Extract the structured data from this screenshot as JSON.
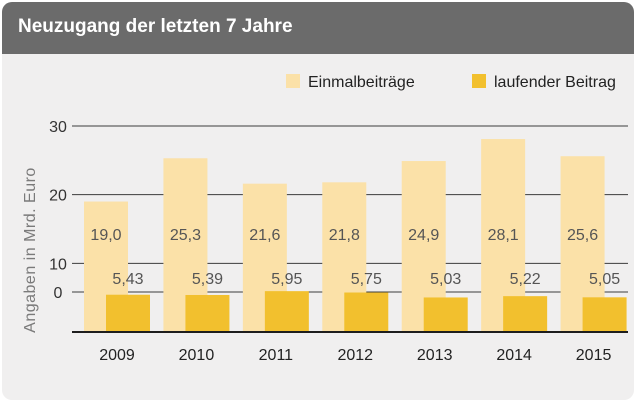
{
  "title": "Neuzugang der letzten 7 Jahre",
  "chart_data": {
    "type": "bar",
    "title": "Neuzugang der letzten 7 Jahre",
    "xlabel": "",
    "ylabel": "Angaben in Mrd. Euro",
    "categories": [
      "2009",
      "2010",
      "2011",
      "2012",
      "2013",
      "2014",
      "2015"
    ],
    "series": [
      {
        "name": "Einmalbeiträge",
        "values": [
          19.0,
          25.3,
          21.6,
          21.8,
          24.9,
          28.1,
          25.6
        ],
        "labels": [
          "19,0",
          "25,3",
          "21,6",
          "21,8",
          "24,9",
          "28,1",
          "25,6"
        ],
        "color": "#fbe1a8"
      },
      {
        "name": "laufender Beitrag",
        "values": [
          5.43,
          5.39,
          5.95,
          5.75,
          5.03,
          5.22,
          5.05
        ],
        "labels": [
          "5,43",
          "5,39",
          "5,95",
          "5,75",
          "5,03",
          "5,22",
          "5,05"
        ],
        "color": "#f2c02e"
      }
    ],
    "yticks": [
      "0",
      "10",
      "20",
      "30"
    ],
    "ylim": [
      0,
      30
    ],
    "grid": true,
    "legend": "top-right"
  }
}
